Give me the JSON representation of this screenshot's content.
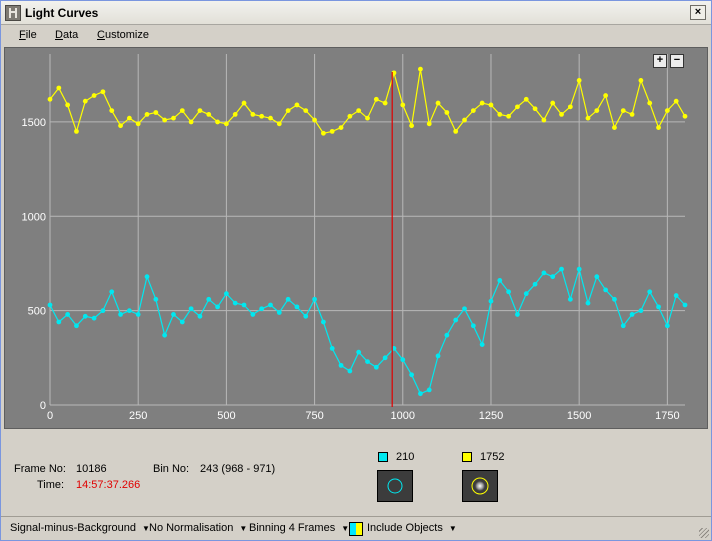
{
  "window": {
    "title": "Light Curves",
    "close_glyph": "×"
  },
  "menu": [
    {
      "label": "File",
      "u": "F",
      "rest": "ile"
    },
    {
      "label": "Data",
      "u": "D",
      "rest": "ata"
    },
    {
      "label": "Customize",
      "u": "C",
      "rest": "ustomize"
    }
  ],
  "zoom": {
    "in": "+",
    "out": "−"
  },
  "chart_data": {
    "type": "line",
    "xlim": [
      0,
      1800
    ],
    "ylim": [
      0,
      1860
    ],
    "x_ticks": [
      0,
      250,
      500,
      750,
      1000,
      1250,
      1500,
      1750
    ],
    "y_ticks": [
      0,
      500,
      1000,
      1500
    ],
    "grid": true,
    "cursor_x": 970,
    "series": [
      {
        "color": "#ffff00",
        "x": [
          0,
          25,
          50,
          75,
          100,
          125,
          150,
          175,
          200,
          225,
          250,
          275,
          300,
          325,
          350,
          375,
          400,
          425,
          450,
          475,
          500,
          525,
          550,
          575,
          600,
          625,
          650,
          675,
          700,
          725,
          750,
          775,
          800,
          825,
          850,
          875,
          900,
          925,
          950,
          975,
          1000,
          1025,
          1050,
          1075,
          1100,
          1125,
          1150,
          1175,
          1200,
          1225,
          1250,
          1275,
          1300,
          1325,
          1350,
          1375,
          1400,
          1425,
          1450,
          1475,
          1500,
          1525,
          1550,
          1575,
          1600,
          1625,
          1650,
          1675,
          1700,
          1725,
          1750,
          1775,
          1800
        ],
        "values": [
          1620,
          1680,
          1590,
          1450,
          1610,
          1640,
          1660,
          1560,
          1480,
          1520,
          1490,
          1540,
          1550,
          1510,
          1520,
          1560,
          1500,
          1560,
          1540,
          1500,
          1490,
          1540,
          1600,
          1540,
          1530,
          1520,
          1490,
          1560,
          1590,
          1560,
          1510,
          1440,
          1450,
          1470,
          1530,
          1560,
          1520,
          1620,
          1600,
          1760,
          1590,
          1480,
          1780,
          1490,
          1600,
          1550,
          1450,
          1510,
          1560,
          1600,
          1590,
          1540,
          1530,
          1580,
          1620,
          1570,
          1510,
          1600,
          1540,
          1580,
          1720,
          1520,
          1560,
          1640,
          1470,
          1560,
          1540,
          1720,
          1600,
          1470,
          1560,
          1610,
          1530
        ]
      },
      {
        "color": "#00e8f0",
        "x": [
          0,
          25,
          50,
          75,
          100,
          125,
          150,
          175,
          200,
          225,
          250,
          275,
          300,
          325,
          350,
          375,
          400,
          425,
          450,
          475,
          500,
          525,
          550,
          575,
          600,
          625,
          650,
          675,
          700,
          725,
          750,
          775,
          800,
          825,
          850,
          875,
          900,
          925,
          950,
          975,
          1000,
          1025,
          1050,
          1075,
          1100,
          1125,
          1150,
          1175,
          1200,
          1225,
          1250,
          1275,
          1300,
          1325,
          1350,
          1375,
          1400,
          1425,
          1450,
          1475,
          1500,
          1525,
          1550,
          1575,
          1600,
          1625,
          1650,
          1675,
          1700,
          1725,
          1750,
          1775,
          1800
        ],
        "values": [
          530,
          440,
          480,
          420,
          470,
          460,
          500,
          600,
          480,
          500,
          480,
          680,
          560,
          370,
          480,
          440,
          510,
          470,
          560,
          520,
          590,
          540,
          530,
          480,
          510,
          530,
          490,
          560,
          520,
          470,
          560,
          440,
          300,
          210,
          180,
          280,
          230,
          200,
          250,
          300,
          240,
          160,
          60,
          80,
          260,
          370,
          450,
          510,
          420,
          320,
          550,
          660,
          600,
          480,
          590,
          640,
          700,
          680,
          720,
          560,
          720,
          540,
          680,
          610,
          560,
          420,
          480,
          500,
          600,
          520,
          420,
          580,
          530
        ]
      }
    ]
  },
  "status": {
    "frame_label": "Frame No:",
    "frame_value": "10186",
    "bin_label": "Bin No:",
    "bin_value": "243 (968 - 971)",
    "time_label": "Time:",
    "time_value": "14:57:37.266"
  },
  "objects": [
    {
      "id": "210",
      "color": "#00e8f0"
    },
    {
      "id": "1752",
      "color": "#ffff00"
    }
  ],
  "toolbar": {
    "signal": "Signal-minus-Background",
    "normalisation": "No Normalisation",
    "binning": "Binning 4 Frames",
    "include": "Include Objects"
  }
}
